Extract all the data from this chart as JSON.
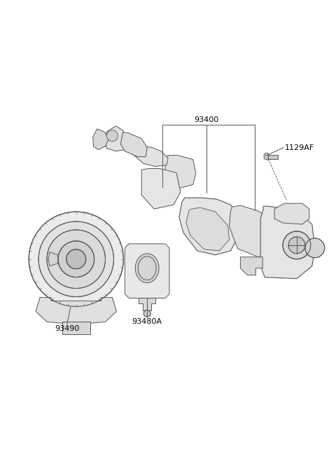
{
  "background_color": "#ffffff",
  "line_color": "#555555",
  "label_color": "#000000",
  "figsize": [
    4.8,
    6.55
  ],
  "dpi": 100,
  "label_93400": "93400",
  "label_1129AF": "1129AF",
  "label_93480A": "93480A",
  "label_93490": "93490"
}
